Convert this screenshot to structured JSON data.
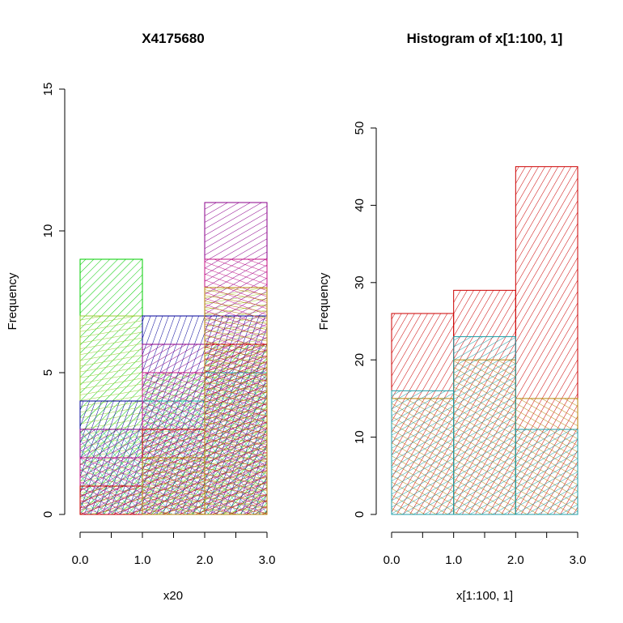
{
  "chart_data": [
    {
      "type": "bar",
      "title": "X4175680",
      "xlabel": "x20",
      "ylabel": "Frequency",
      "xlim": [
        0,
        3
      ],
      "ylim": [
        0,
        15
      ],
      "xticks": [
        "0.0",
        "1.0",
        "2.0",
        "3.0"
      ],
      "xticks_minor": [
        0.5,
        1.5,
        2.5
      ],
      "yticks": [
        "0",
        "5",
        "10",
        "15"
      ],
      "bin_edges": [
        0,
        1,
        2,
        3
      ],
      "series": [
        {
          "color": "#00cc00",
          "values": [
            9,
            5,
            6
          ],
          "hatch_angle": 45
        },
        {
          "color": "#9acd32",
          "values": [
            7,
            5,
            8
          ],
          "hatch_angle": 80
        },
        {
          "color": "#000099",
          "values": [
            4,
            7,
            7
          ],
          "hatch_angle": 20
        },
        {
          "color": "#1fb0b0",
          "values": [
            3,
            4,
            5
          ],
          "hatch_angle": 140
        },
        {
          "color": "#8b008b",
          "values": [
            3,
            6,
            11
          ],
          "hatch_angle": 60
        },
        {
          "color": "#c71585",
          "values": [
            2,
            5,
            9
          ],
          "hatch_angle": 110
        },
        {
          "color": "#cc0000",
          "values": [
            1,
            3,
            6
          ],
          "hatch_angle": 70
        },
        {
          "color": "#b8860b",
          "values": [
            0,
            2,
            8
          ],
          "hatch_angle": 100
        }
      ]
    },
    {
      "type": "bar",
      "title": "Histogram of x[1:100, 1]",
      "xlabel": "x[1:100, 1]",
      "ylabel": "Frequency",
      "xlim": [
        0,
        3
      ],
      "ylim": [
        0,
        50
      ],
      "xticks": [
        "0.0",
        "1.0",
        "2.0",
        "3.0"
      ],
      "xticks_minor": [
        0.5,
        1.5,
        2.5
      ],
      "yticks": [
        "0",
        "10",
        "20",
        "30",
        "40",
        "50"
      ],
      "bin_edges": [
        0,
        1,
        2,
        3
      ],
      "series": [
        {
          "color": "#cc0000",
          "values": [
            26,
            29,
            45
          ],
          "hatch_angle": 30
        },
        {
          "color": "#b8860b",
          "values": [
            15,
            20,
            15
          ],
          "hatch_angle": 120
        },
        {
          "color": "#1f9fa8",
          "values": [
            16,
            23,
            11
          ],
          "hatch_angle": 60
        }
      ]
    }
  ]
}
